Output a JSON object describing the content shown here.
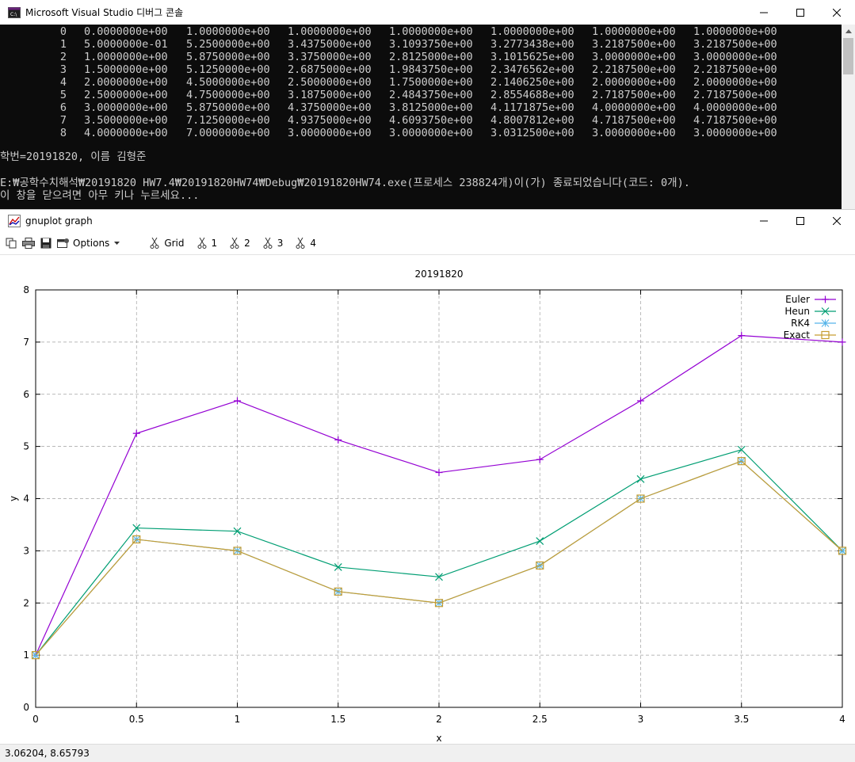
{
  "console": {
    "title": "Microsoft Visual Studio 디버그 콘솔",
    "rows": [
      [
        "0",
        "0.0000000e+00",
        "1.0000000e+00",
        "1.0000000e+00",
        "1.0000000e+00",
        "1.0000000e+00",
        "1.0000000e+00",
        "1.0000000e+00"
      ],
      [
        "1",
        "5.0000000e-01",
        "5.2500000e+00",
        "3.4375000e+00",
        "3.1093750e+00",
        "3.2773438e+00",
        "3.2187500e+00",
        "3.2187500e+00"
      ],
      [
        "2",
        "1.0000000e+00",
        "5.8750000e+00",
        "3.3750000e+00",
        "2.8125000e+00",
        "3.1015625e+00",
        "3.0000000e+00",
        "3.0000000e+00"
      ],
      [
        "3",
        "1.5000000e+00",
        "5.1250000e+00",
        "2.6875000e+00",
        "1.9843750e+00",
        "2.3476562e+00",
        "2.2187500e+00",
        "2.2187500e+00"
      ],
      [
        "4",
        "2.0000000e+00",
        "4.5000000e+00",
        "2.5000000e+00",
        "1.7500000e+00",
        "2.1406250e+00",
        "2.0000000e+00",
        "2.0000000e+00"
      ],
      [
        "5",
        "2.5000000e+00",
        "4.7500000e+00",
        "3.1875000e+00",
        "2.4843750e+00",
        "2.8554688e+00",
        "2.7187500e+00",
        "2.7187500e+00"
      ],
      [
        "6",
        "3.0000000e+00",
        "5.8750000e+00",
        "4.3750000e+00",
        "3.8125000e+00",
        "4.1171875e+00",
        "4.0000000e+00",
        "4.0000000e+00"
      ],
      [
        "7",
        "3.5000000e+00",
        "7.1250000e+00",
        "4.9375000e+00",
        "4.6093750e+00",
        "4.8007812e+00",
        "4.7187500e+00",
        "4.7187500e+00"
      ],
      [
        "8",
        "4.0000000e+00",
        "7.0000000e+00",
        "3.0000000e+00",
        "3.0000000e+00",
        "3.0312500e+00",
        "3.0000000e+00",
        "3.0000000e+00"
      ]
    ],
    "student_line": "학번=20191820, 이름 김형준",
    "exit_line": "E:₩공학수치해석₩20191820 HW7.4₩20191820HW74₩Debug₩20191820HW74.exe(프로세스 238824개)이(가) 종료되었습니다(코드: 0개).",
    "prompt_line": "이 창을 닫으려면 아무 키나 누르세요..."
  },
  "gnuplot": {
    "title": "gnuplot graph",
    "toolbar": {
      "options": "Options",
      "grid": "Grid",
      "plot1": "1",
      "plot2": "2",
      "plot3": "3",
      "plot4": "4"
    },
    "status": "3.06204,  8.65793"
  },
  "chart_data": {
    "type": "line",
    "title": "20191820",
    "xlabel": "x",
    "ylabel": "y",
    "xlim": [
      0,
      4
    ],
    "ylim": [
      0,
      8
    ],
    "xticks": [
      "0",
      "0.5",
      "1",
      "1.5",
      "2",
      "2.5",
      "3",
      "3.5",
      "4"
    ],
    "yticks": [
      "0",
      "1",
      "2",
      "3",
      "4",
      "5",
      "6",
      "7",
      "8"
    ],
    "grid": true,
    "legend_position": "top-right",
    "x": [
      0,
      0.5,
      1,
      1.5,
      2,
      2.5,
      3,
      3.5,
      4
    ],
    "series": [
      {
        "name": "Euler",
        "color": "#9400d3",
        "marker": "plus",
        "values": [
          1.0,
          5.25,
          5.875,
          5.125,
          4.5,
          4.75,
          5.875,
          7.125,
          7.0
        ]
      },
      {
        "name": "Heun",
        "color": "#009e73",
        "marker": "cross",
        "values": [
          1.0,
          3.4375,
          3.375,
          2.6875,
          2.5,
          3.1875,
          4.375,
          4.9375,
          3.0
        ]
      },
      {
        "name": "RK4",
        "color": "#56b4e9",
        "marker": "star",
        "values": [
          1.0,
          3.21875,
          3.0,
          2.21875,
          2.0,
          2.71875,
          4.0,
          4.71875,
          3.0
        ]
      },
      {
        "name": "Exact",
        "color": "#c69d31",
        "marker": "square",
        "values": [
          1.0,
          3.21875,
          3.0,
          2.21875,
          2.0,
          2.71875,
          4.0,
          4.71875,
          3.0
        ]
      }
    ]
  }
}
